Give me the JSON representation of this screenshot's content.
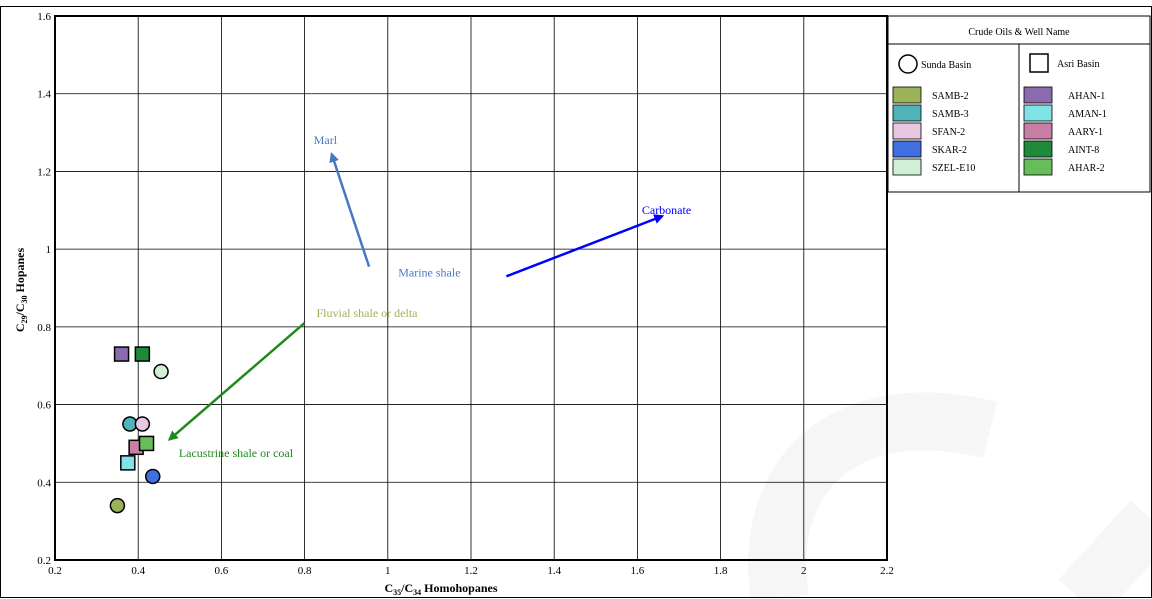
{
  "chart_data": {
    "type": "scatter",
    "xlabel": "C35/C34 Homohopanes",
    "ylabel": "C29/C30 Hopanes",
    "xlim": [
      0.2,
      2.2
    ],
    "ylim": [
      0.2,
      1.6
    ],
    "xticks": [
      0.2,
      0.4,
      0.6,
      0.8,
      1,
      1.2,
      1.4,
      1.6,
      1.8,
      2,
      2.2
    ],
    "yticks": [
      0.2,
      0.4,
      0.6,
      0.8,
      1,
      1.2,
      1.4,
      1.6
    ],
    "grid": true,
    "legend": {
      "title": "Crude Oils & Well Name",
      "placement": "top-right",
      "groups": [
        {
          "name": "Sunda Basin",
          "marker": "circle",
          "entries": [
            "SAMB-2",
            "SAMB-3",
            "SFAN-2",
            "SKAR-2",
            "SZEL-E10"
          ]
        },
        {
          "name": "Asri Basin",
          "marker": "square",
          "entries": [
            "AHAN-1",
            "AMAN-1",
            "AARY-1",
            "AINT-8",
            "AHAR-2"
          ]
        }
      ]
    },
    "series": [
      {
        "name": "SAMB-2",
        "marker": "circle",
        "color": "#9ab25a",
        "points": [
          [
            0.35,
            0.34
          ]
        ]
      },
      {
        "name": "SAMB-3",
        "marker": "circle",
        "color": "#4fb3b7",
        "points": [
          [
            0.38,
            0.55
          ]
        ]
      },
      {
        "name": "SFAN-2",
        "marker": "circle",
        "color": "#e9c6e2",
        "points": [
          [
            0.41,
            0.55
          ]
        ]
      },
      {
        "name": "SKAR-2",
        "marker": "circle",
        "color": "#3f6fe0",
        "points": [
          [
            0.435,
            0.415
          ]
        ]
      },
      {
        "name": "SZEL-E10",
        "marker": "circle",
        "color": "#d2f0d6",
        "points": [
          [
            0.455,
            0.685
          ]
        ]
      },
      {
        "name": "AHAN-1",
        "marker": "square",
        "color": "#8a6bb0",
        "points": [
          [
            0.36,
            0.73
          ]
        ]
      },
      {
        "name": "AMAN-1",
        "marker": "square",
        "color": "#7fe3e8",
        "points": [
          [
            0.375,
            0.45
          ]
        ]
      },
      {
        "name": "AARY-1",
        "marker": "square",
        "color": "#c77fa6",
        "points": [
          [
            0.395,
            0.49
          ]
        ]
      },
      {
        "name": "AINT-8",
        "marker": "square",
        "color": "#1e8a3a",
        "points": [
          [
            0.41,
            0.73
          ]
        ]
      },
      {
        "name": "AHAR-2",
        "marker": "square",
        "color": "#66bd5a",
        "points": [
          [
            0.42,
            0.5
          ]
        ]
      }
    ],
    "annotations": [
      {
        "text": "Marl",
        "color": "#4a78c0",
        "arrow": {
          "from": [
            0.955,
            0.955
          ],
          "to": [
            0.865,
            1.245
          ]
        },
        "label_at": [
          0.85,
          1.27
        ]
      },
      {
        "text": "Carbonate",
        "color": "#0000ff",
        "arrow": {
          "from": [
            1.285,
            0.93
          ],
          "to": [
            1.66,
            1.085
          ]
        },
        "label_at": [
          1.67,
          1.09
        ]
      },
      {
        "text": "Marine shale",
        "color": "#4a78c0",
        "arrow": null,
        "label_at": [
          1.1,
          0.93
        ]
      },
      {
        "text": "Fluvial shale or delta",
        "color": "#9ab25a",
        "arrow": {
          "from": [
            0.8,
            0.81
          ],
          "to": [
            0.475,
            0.51
          ]
        },
        "label_at": [
          0.95,
          0.825
        ]
      },
      {
        "text": "Lacustrine shale or coal",
        "color": "#1e8a1e",
        "arrow": null,
        "label_at": [
          0.635,
          0.465
        ]
      }
    ]
  }
}
